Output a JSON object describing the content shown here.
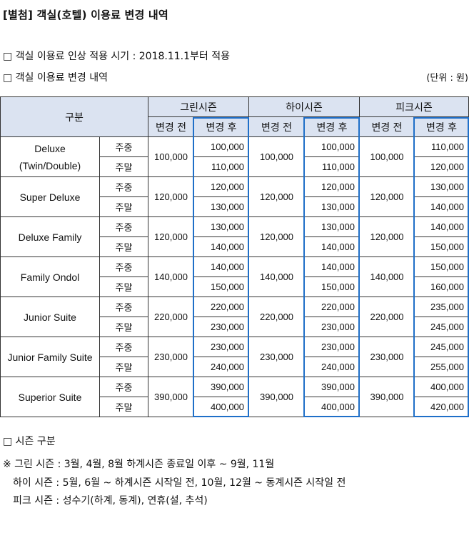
{
  "title": "[별첨] 객실(호텔) 이용료 변경 내역",
  "bullets": {
    "timing": "□ 객실 이용료 인상 적용 시기 : 2018.11.1부터 적용",
    "changes": "□ 객실 이용료 변경 내역",
    "unit": "(단위 : 원)"
  },
  "table": {
    "corner": "구분",
    "seasons": [
      "그린시즌",
      "하이시즌",
      "피크시즌"
    ],
    "before_label": "변경 전",
    "after_label": "변경 후",
    "weekday": "주중",
    "weekend": "주말",
    "rows": [
      {
        "name": "Deluxe",
        "name2": "(Twin/Double)",
        "green": {
          "before": "100,000",
          "wd": "100,000",
          "we": "110,000"
        },
        "high": {
          "before": "100,000",
          "wd": "100,000",
          "we": "110,000"
        },
        "peak": {
          "before": "100,000",
          "wd": "110,000",
          "we": "120,000"
        }
      },
      {
        "name": "Super Deluxe",
        "name2": "",
        "green": {
          "before": "120,000",
          "wd": "120,000",
          "we": "130,000"
        },
        "high": {
          "before": "120,000",
          "wd": "120,000",
          "we": "130,000"
        },
        "peak": {
          "before": "120,000",
          "wd": "130,000",
          "we": "140,000"
        }
      },
      {
        "name": "Deluxe Family",
        "name2": "",
        "green": {
          "before": "120,000",
          "wd": "130,000",
          "we": "140,000"
        },
        "high": {
          "before": "120,000",
          "wd": "130,000",
          "we": "140,000"
        },
        "peak": {
          "before": "120,000",
          "wd": "140,000",
          "we": "150,000"
        }
      },
      {
        "name": "Family Ondol",
        "name2": "",
        "green": {
          "before": "140,000",
          "wd": "140,000",
          "we": "150,000"
        },
        "high": {
          "before": "140,000",
          "wd": "140,000",
          "we": "150,000"
        },
        "peak": {
          "before": "140,000",
          "wd": "150,000",
          "we": "160,000"
        }
      },
      {
        "name": "Junior Suite",
        "name2": "",
        "green": {
          "before": "220,000",
          "wd": "220,000",
          "we": "230,000"
        },
        "high": {
          "before": "220,000",
          "wd": "220,000",
          "we": "230,000"
        },
        "peak": {
          "before": "220,000",
          "wd": "235,000",
          "we": "245,000"
        }
      },
      {
        "name": "Junior Family Suite",
        "name2": "",
        "green": {
          "before": "230,000",
          "wd": "230,000",
          "we": "240,000"
        },
        "high": {
          "before": "230,000",
          "wd": "230,000",
          "we": "240,000"
        },
        "peak": {
          "before": "230,000",
          "wd": "245,000",
          "we": "255,000"
        }
      },
      {
        "name": "Superior Suite",
        "name2": "",
        "green": {
          "before": "390,000",
          "wd": "390,000",
          "we": "400,000"
        },
        "high": {
          "before": "390,000",
          "wd": "390,000",
          "we": "400,000"
        },
        "peak": {
          "before": "390,000",
          "wd": "400,000",
          "we": "420,000"
        }
      }
    ]
  },
  "season_section": {
    "heading": "□ 시즌 구분",
    "green": "※ 그린 시즌 : 3월, 4월, 8월 하계시즌 종료일 이후 ~ 9월, 11월",
    "high": "하이 시즌 : 5월, 6월 ~ 하계시즌 시작일 전, 10월, 12월 ~ 동계시즌 시작일 전",
    "peak": "피크 시즌 : 성수기(하계, 동계), 연휴(설, 추석)"
  }
}
